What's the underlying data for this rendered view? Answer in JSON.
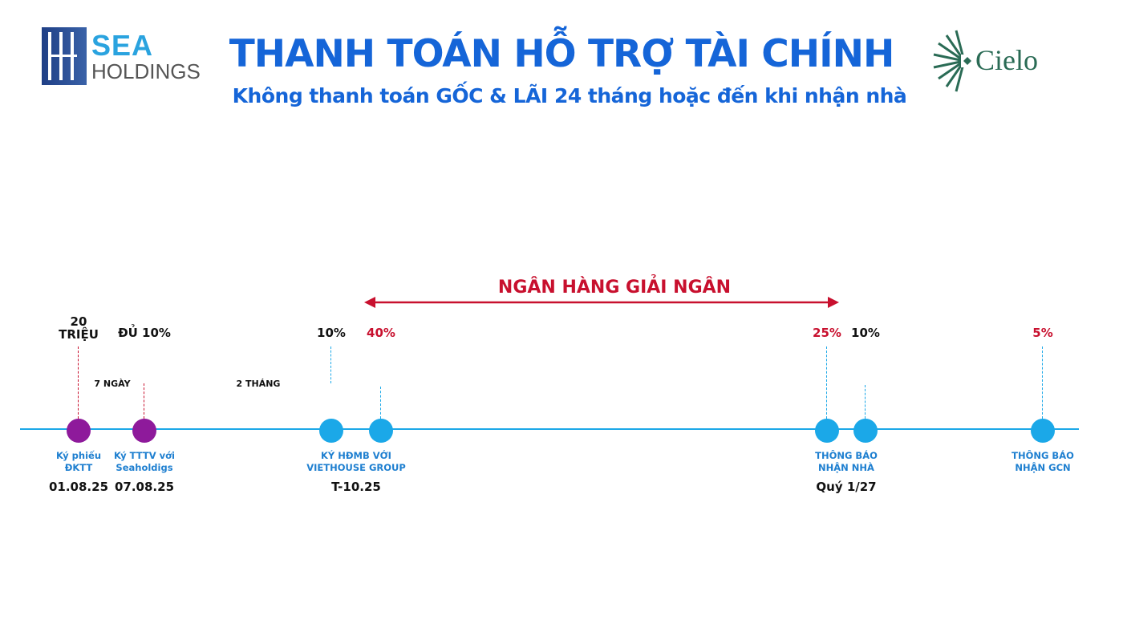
{
  "header": {
    "title": "THANH TOÁN HỖ TRỢ TÀI CHÍNH",
    "subtitle": "Không thanh toán GỐC & LÃI 24 tháng hoặc đến khi nhận nhà",
    "logo_left": {
      "line1": "SEA",
      "line2": "HOLDINGS"
    },
    "logo_right": "Cielo"
  },
  "colors": {
    "title": "#1565d8",
    "timeline": "#1ba8e8",
    "early_milestone": "#8e1a9b",
    "bank": "#c8102e",
    "label": "#1e7fd0"
  },
  "bank_span": {
    "label": "NGÂN HÀNG GIẢI NGÂN",
    "from_milestone": 3,
    "to_milestone": 4
  },
  "durations": [
    {
      "label": "7 NGÀY"
    },
    {
      "label": "2 THÁNG"
    }
  ],
  "milestones": [
    {
      "amount": "20\nTRIỆU",
      "amount_color": "#111111",
      "dot_color": "#8e1a9b",
      "label": "Ký phiếu\nĐKTT",
      "date": "01.08.25"
    },
    {
      "amount": "ĐỦ 10%",
      "amount_color": "#111111",
      "dot_color": "#8e1a9b",
      "label": "Ký TTTV với\nSeaholdigs",
      "date": "07.08.25"
    },
    {
      "amount": "10%",
      "amount_color": "#111111",
      "dot_color": "#1ba8e8",
      "label": "KÝ HĐMB VỚI\nVIETHOUSE GROUP",
      "date": "T-10.25"
    },
    {
      "amount": "40%",
      "amount_color": "#c8102e",
      "dot_color": "#1ba8e8"
    },
    {
      "amount": "25%",
      "amount_color": "#c8102e",
      "dot_color": "#1ba8e8",
      "label": "THÔNG BÁO\nNHẬN NHÀ",
      "date": "Quý 1/27"
    },
    {
      "amount": "10%",
      "amount_color": "#111111",
      "dot_color": "#1ba8e8"
    },
    {
      "amount": "5%",
      "amount_color": "#c8102e",
      "dot_color": "#1ba8e8",
      "label": "THÔNG BÁO\nNHẬN GCN"
    }
  ]
}
